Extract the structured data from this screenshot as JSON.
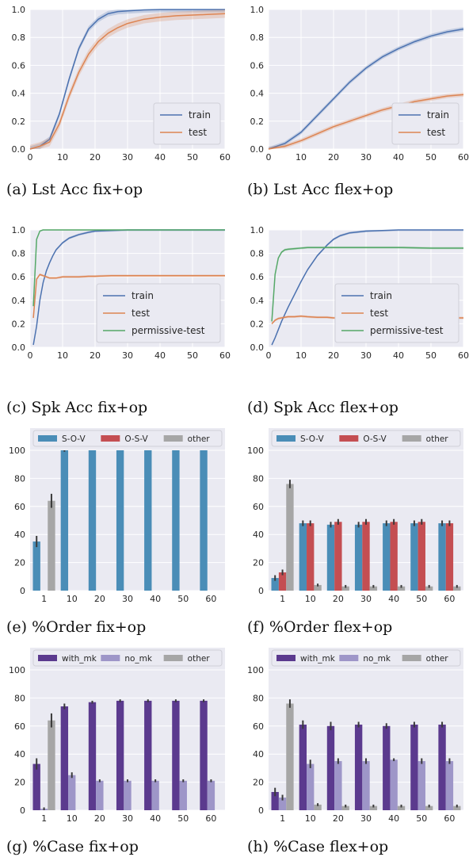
{
  "colors": {
    "train": "#4c72b0",
    "test": "#dd8452",
    "permissive": "#55a868",
    "sov": "#4a8db7",
    "osv": "#c44e52",
    "other": "#a6a6a6",
    "with_mk": "#5b3a8e",
    "no_mk": "#9e96c8",
    "panel_bg": "#eaeaf2",
    "grid": "#ffffff"
  },
  "chart_data": [
    {
      "id": "a",
      "type": "line",
      "caption": "(a) Lst Acc fix+op",
      "xlim": [
        0,
        60
      ],
      "ylim": [
        0,
        1.0
      ],
      "xticks": [
        "0",
        "10",
        "20",
        "30",
        "40",
        "50",
        "60"
      ],
      "yticks": [
        "0.0",
        "0.2",
        "0.4",
        "0.6",
        "0.8",
        "1.0"
      ],
      "legend": "bottom-right",
      "grid": true,
      "x": [
        0,
        3,
        6,
        9,
        12,
        15,
        18,
        21,
        24,
        27,
        30,
        35,
        40,
        45,
        50,
        55,
        60
      ],
      "series": [
        {
          "name": "train",
          "color": "train",
          "values": [
            0,
            0.02,
            0.07,
            0.25,
            0.5,
            0.72,
            0.86,
            0.93,
            0.97,
            0.985,
            0.99,
            0.997,
            1.0,
            1.0,
            1.0,
            1.0,
            1.0
          ],
          "band": 0.02
        },
        {
          "name": "test",
          "color": "test",
          "values": [
            0,
            0.02,
            0.05,
            0.18,
            0.38,
            0.55,
            0.68,
            0.77,
            0.83,
            0.87,
            0.9,
            0.93,
            0.945,
            0.955,
            0.96,
            0.965,
            0.97
          ],
          "band": 0.03
        }
      ]
    },
    {
      "id": "b",
      "type": "line",
      "caption": "(b) Lst Acc flex+op",
      "xlim": [
        0,
        60
      ],
      "ylim": [
        0,
        1.0
      ],
      "xticks": [
        "0",
        "10",
        "20",
        "30",
        "40",
        "50",
        "60"
      ],
      "yticks": [
        "0.0",
        "0.2",
        "0.4",
        "0.6",
        "0.8",
        "1.0"
      ],
      "legend": "bottom-right",
      "grid": true,
      "x": [
        0,
        5,
        10,
        15,
        20,
        25,
        30,
        35,
        40,
        45,
        50,
        55,
        60
      ],
      "series": [
        {
          "name": "train",
          "color": "train",
          "values": [
            0,
            0.04,
            0.12,
            0.24,
            0.36,
            0.48,
            0.58,
            0.66,
            0.72,
            0.77,
            0.81,
            0.84,
            0.86
          ],
          "band": 0.015
        },
        {
          "name": "test",
          "color": "test",
          "values": [
            0,
            0.02,
            0.06,
            0.11,
            0.16,
            0.2,
            0.24,
            0.28,
            0.31,
            0.34,
            0.36,
            0.38,
            0.39
          ],
          "band": 0.015
        }
      ]
    },
    {
      "id": "c",
      "type": "line",
      "caption": "(c) Spk Acc fix+op",
      "xlim": [
        0,
        60
      ],
      "ylim": [
        0,
        1.0
      ],
      "xticks": [
        "0",
        "10",
        "20",
        "30",
        "40",
        "50",
        "60"
      ],
      "yticks": [
        "0.0",
        "0.2",
        "0.4",
        "0.6",
        "0.8",
        "1.0"
      ],
      "legend": "bottom-right",
      "grid": true,
      "x": [
        1,
        2,
        3,
        4,
        5,
        6,
        7,
        8,
        10,
        12,
        15,
        18,
        20,
        25,
        30,
        40,
        50,
        60
      ],
      "series": [
        {
          "name": "train",
          "color": "train",
          "values": [
            0.02,
            0.18,
            0.4,
            0.55,
            0.65,
            0.72,
            0.78,
            0.83,
            0.89,
            0.93,
            0.96,
            0.98,
            0.99,
            0.995,
            1.0,
            1.0,
            1.0,
            1.0
          ],
          "band": 0.01
        },
        {
          "name": "test",
          "color": "test",
          "values": [
            0.25,
            0.58,
            0.62,
            0.61,
            0.6,
            0.59,
            0.59,
            0.59,
            0.6,
            0.6,
            0.6,
            0.605,
            0.605,
            0.61,
            0.61,
            0.61,
            0.61,
            0.61
          ],
          "band": 0.01
        },
        {
          "name": "permissive-test",
          "color": "permissive",
          "values": [
            0.35,
            0.92,
            0.99,
            1.0,
            1.0,
            1.0,
            1.0,
            1.0,
            1.0,
            1.0,
            1.0,
            1.0,
            1.0,
            1.0,
            1.0,
            1.0,
            1.0,
            1.0
          ],
          "band": 0.005
        }
      ]
    },
    {
      "id": "d",
      "type": "line",
      "caption": "(d) Spk Acc flex+op",
      "xlim": [
        0,
        60
      ],
      "ylim": [
        0,
        1.0
      ],
      "xticks": [
        "0",
        "10",
        "20",
        "30",
        "40",
        "50",
        "60"
      ],
      "yticks": [
        "0.0",
        "0.2",
        "0.4",
        "0.6",
        "0.8",
        "1.0"
      ],
      "legend": "bottom-right",
      "grid": true,
      "x": [
        1,
        2,
        3,
        4,
        5,
        6,
        8,
        10,
        12,
        15,
        18,
        20,
        22,
        25,
        30,
        35,
        40,
        50,
        60
      ],
      "series": [
        {
          "name": "train",
          "color": "train",
          "values": [
            0.02,
            0.08,
            0.15,
            0.22,
            0.28,
            0.34,
            0.45,
            0.56,
            0.66,
            0.78,
            0.87,
            0.92,
            0.95,
            0.975,
            0.99,
            0.995,
            1.0,
            1.0,
            1.0
          ],
          "band": 0.01
        },
        {
          "name": "test",
          "color": "test",
          "values": [
            0.2,
            0.23,
            0.245,
            0.25,
            0.255,
            0.26,
            0.26,
            0.265,
            0.26,
            0.255,
            0.255,
            0.25,
            0.25,
            0.25,
            0.25,
            0.25,
            0.25,
            0.25,
            0.25
          ],
          "band": 0.01
        },
        {
          "name": "permissive-test",
          "color": "permissive",
          "values": [
            0.22,
            0.62,
            0.76,
            0.81,
            0.83,
            0.835,
            0.84,
            0.845,
            0.85,
            0.85,
            0.85,
            0.85,
            0.85,
            0.85,
            0.85,
            0.85,
            0.85,
            0.845,
            0.845
          ],
          "band": 0.01
        }
      ]
    },
    {
      "id": "e",
      "type": "bar",
      "caption": "(e) %Order fix+op",
      "categories": [
        "1",
        "10",
        "20",
        "30",
        "40",
        "50",
        "60"
      ],
      "ylim": [
        0,
        100
      ],
      "yticks": [
        "0",
        "20",
        "40",
        "60",
        "80",
        "100"
      ],
      "legend": "top",
      "grid": true,
      "series": [
        {
          "name": "S-O-V",
          "color": "sov",
          "values": [
            35,
            100,
            100,
            100,
            100,
            100,
            100
          ],
          "err": [
            4,
            1,
            0,
            0,
            0,
            0,
            0
          ]
        },
        {
          "name": "O-S-V",
          "color": "osv",
          "values": [
            0,
            0,
            0,
            0,
            0,
            0,
            0
          ],
          "err": [
            0,
            0,
            0,
            0,
            0,
            0,
            0
          ]
        },
        {
          "name": "other",
          "color": "other",
          "values": [
            64,
            0,
            0,
            0,
            0,
            0,
            0
          ],
          "err": [
            5,
            0,
            0,
            0,
            0,
            0,
            0
          ]
        }
      ]
    },
    {
      "id": "f",
      "type": "bar",
      "caption": "(f) %Order flex+op",
      "categories": [
        "1",
        "10",
        "20",
        "30",
        "40",
        "50",
        "60"
      ],
      "ylim": [
        0,
        100
      ],
      "yticks": [
        "0",
        "20",
        "40",
        "60",
        "80",
        "100"
      ],
      "legend": "top",
      "grid": true,
      "series": [
        {
          "name": "S-O-V",
          "color": "sov",
          "values": [
            9,
            48,
            47,
            47,
            48,
            48,
            48
          ],
          "err": [
            2,
            2,
            2,
            2,
            2,
            2,
            2
          ]
        },
        {
          "name": "O-S-V",
          "color": "osv",
          "values": [
            13,
            48,
            49,
            49,
            49,
            49,
            48
          ],
          "err": [
            2,
            2,
            2,
            2,
            2,
            2,
            2
          ]
        },
        {
          "name": "other",
          "color": "other",
          "values": [
            76,
            4,
            3,
            3,
            3,
            3,
            3
          ],
          "err": [
            3,
            1,
            1,
            1,
            1,
            1,
            1
          ]
        }
      ]
    },
    {
      "id": "g",
      "type": "bar",
      "caption": "(g) %Case fix+op",
      "categories": [
        "1",
        "10",
        "20",
        "30",
        "40",
        "50",
        "60"
      ],
      "ylim": [
        0,
        100
      ],
      "yticks": [
        "0",
        "20",
        "40",
        "60",
        "80",
        "100"
      ],
      "legend": "top",
      "grid": true,
      "series": [
        {
          "name": "with_mk",
          "color": "with_mk",
          "values": [
            33,
            74,
            77,
            78,
            78,
            78,
            78
          ],
          "err": [
            4,
            2,
            1,
            1,
            1,
            1,
            1
          ]
        },
        {
          "name": "no_mk",
          "color": "no_mk",
          "values": [
            1,
            25,
            21,
            21,
            21,
            21,
            21
          ],
          "err": [
            1,
            2,
            1,
            1,
            1,
            1,
            1
          ]
        },
        {
          "name": "other",
          "color": "other",
          "values": [
            64,
            0,
            0,
            0,
            0,
            0,
            0
          ],
          "err": [
            5,
            0,
            0,
            0,
            0,
            0,
            0
          ]
        }
      ]
    },
    {
      "id": "h",
      "type": "bar",
      "caption": "(h) %Case flex+op",
      "categories": [
        "1",
        "10",
        "20",
        "30",
        "40",
        "50",
        "60"
      ],
      "ylim": [
        0,
        100
      ],
      "yticks": [
        "0",
        "20",
        "40",
        "60",
        "80",
        "100"
      ],
      "legend": "top",
      "grid": true,
      "series": [
        {
          "name": "with_mk",
          "color": "with_mk",
          "values": [
            13,
            61,
            60,
            61,
            60,
            61,
            61
          ],
          "err": [
            3,
            3,
            3,
            2,
            2,
            2,
            2
          ]
        },
        {
          "name": "no_mk",
          "color": "no_mk",
          "values": [
            9,
            33,
            35,
            35,
            36,
            35,
            35
          ],
          "err": [
            2,
            3,
            2,
            2,
            1,
            2,
            2
          ]
        },
        {
          "name": "other",
          "color": "other",
          "values": [
            76,
            4,
            3,
            3,
            3,
            3,
            3
          ],
          "err": [
            3,
            1,
            1,
            1,
            1,
            1,
            1
          ]
        }
      ]
    }
  ]
}
